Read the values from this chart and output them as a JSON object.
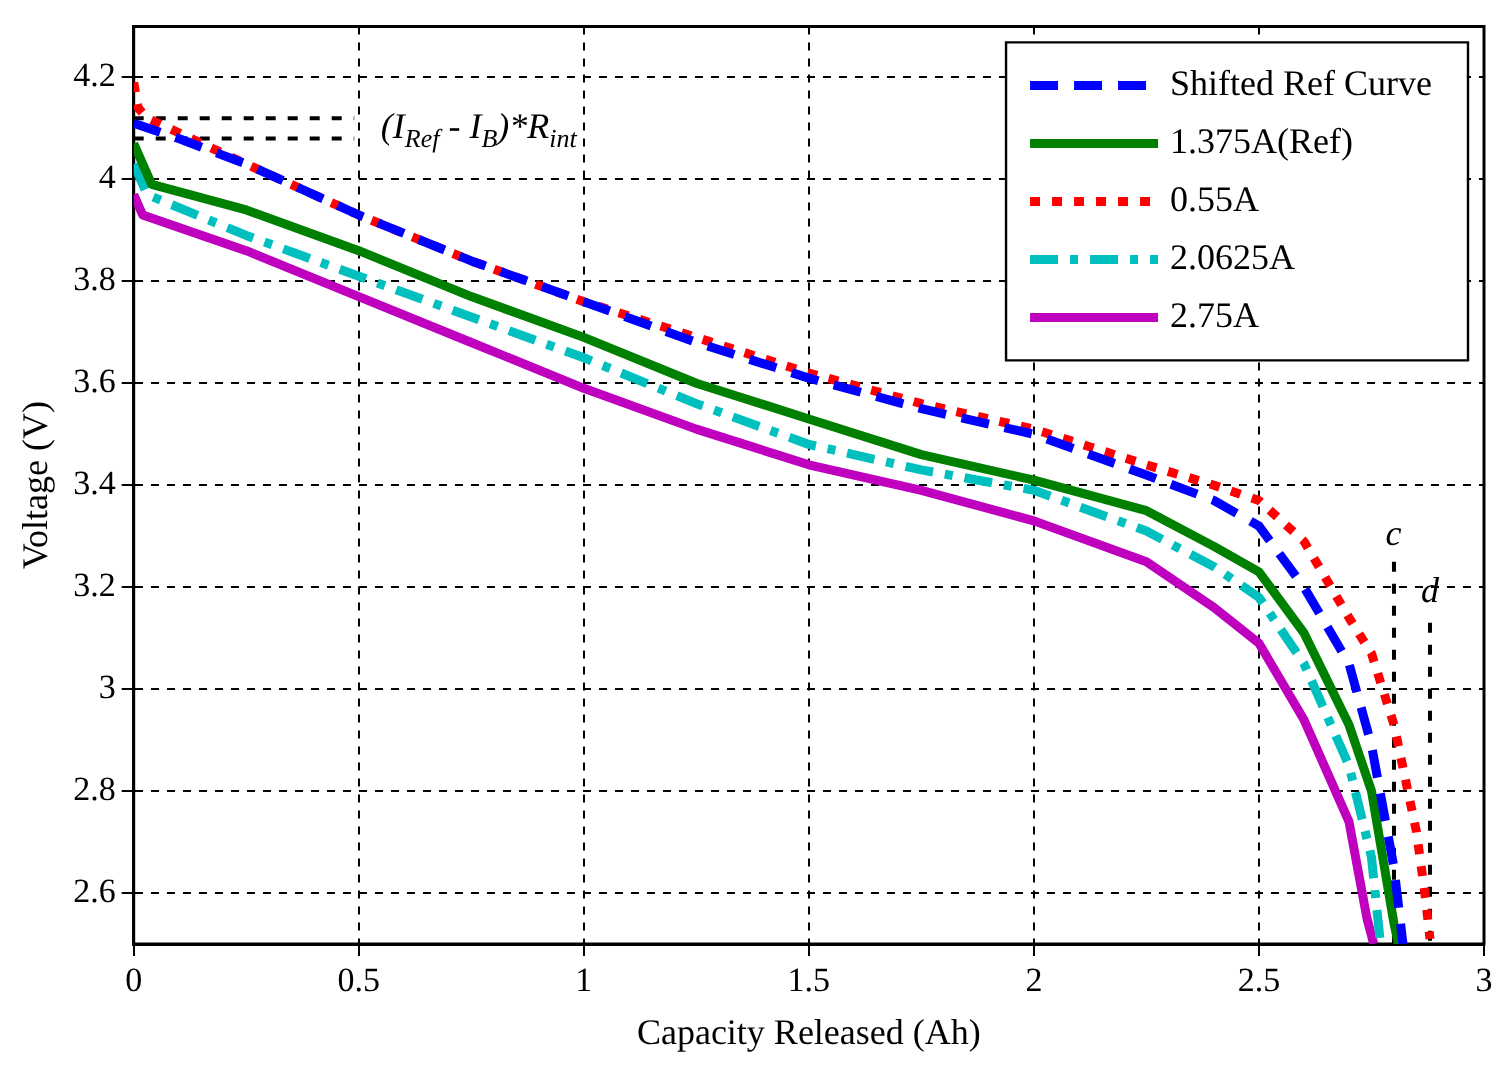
{
  "chart_data": {
    "type": "line",
    "xlabel": "Capacity Released (Ah)",
    "ylabel": "Voltage (V)",
    "xlim": [
      0,
      3
    ],
    "xticks": [
      0,
      0.5,
      1,
      1.5,
      2,
      2.5,
      3
    ],
    "ylim": [
      2.5,
      4.3
    ],
    "yticks": [
      2.6,
      2.8,
      3,
      3.2,
      3.4,
      3.6,
      3.8,
      4,
      4.2
    ],
    "grid": true,
    "legend": "top right",
    "series": [
      {
        "name": "Shifted Ref Curve",
        "color": "#0000ff",
        "line_style": "dashed",
        "x": [
          0,
          0.1,
          0.25,
          0.5,
          0.75,
          1,
          1.25,
          1.5,
          1.75,
          2,
          2.25,
          2.4,
          2.5,
          2.6,
          2.7,
          2.75,
          2.8,
          2.82
        ],
        "values": [
          4.11,
          4.08,
          4.03,
          3.93,
          3.84,
          3.76,
          3.68,
          3.61,
          3.55,
          3.5,
          3.42,
          3.37,
          3.32,
          3.2,
          3.05,
          2.89,
          2.65,
          2.5
        ]
      },
      {
        "name": "1.375A(Ref)",
        "color": "#008000",
        "line_style": "solid",
        "x": [
          0,
          0.04,
          0.25,
          0.5,
          0.75,
          1,
          1.25,
          1.5,
          1.75,
          2,
          2.25,
          2.4,
          2.5,
          2.6,
          2.7,
          2.75,
          2.8,
          2.81
        ],
        "values": [
          4.07,
          3.99,
          3.94,
          3.86,
          3.77,
          3.69,
          3.6,
          3.53,
          3.46,
          3.41,
          3.35,
          3.28,
          3.23,
          3.11,
          2.93,
          2.8,
          2.54,
          2.5
        ]
      },
      {
        "name": "0.55A",
        "color": "#ff0000",
        "line_style": "dotted",
        "x": [
          0,
          0.01,
          0.03,
          0.25,
          0.5,
          0.75,
          1,
          1.25,
          1.5,
          1.75,
          2,
          2.25,
          2.4,
          2.5,
          2.6,
          2.7,
          2.75,
          2.8,
          2.85,
          2.87,
          2.88
        ],
        "values": [
          4.19,
          4.14,
          4.12,
          4.03,
          3.93,
          3.84,
          3.76,
          3.69,
          3.62,
          3.56,
          3.51,
          3.44,
          3.4,
          3.37,
          3.29,
          3.14,
          3.07,
          2.93,
          2.72,
          2.59,
          2.51
        ]
      },
      {
        "name": "2.0625A",
        "color": "#00bfbf",
        "line_style": "dashdot",
        "x": [
          0,
          0.03,
          0.25,
          0.5,
          0.75,
          1,
          1.25,
          1.5,
          1.75,
          2,
          2.25,
          2.4,
          2.5,
          2.6,
          2.7,
          2.75,
          2.77
        ],
        "values": [
          4.03,
          3.97,
          3.89,
          3.81,
          3.73,
          3.65,
          3.56,
          3.48,
          3.43,
          3.39,
          3.31,
          3.24,
          3.18,
          3.05,
          2.85,
          2.67,
          2.5
        ]
      },
      {
        "name": "2.75A",
        "color": "#bf00bf",
        "line_style": "solid",
        "x": [
          0,
          0.02,
          0.25,
          0.5,
          0.75,
          1,
          1.25,
          1.5,
          1.75,
          2,
          2.25,
          2.4,
          2.5,
          2.6,
          2.7,
          2.74,
          2.755
        ],
        "values": [
          3.97,
          3.93,
          3.86,
          3.77,
          3.68,
          3.59,
          3.51,
          3.44,
          3.39,
          3.33,
          3.25,
          3.16,
          3.09,
          2.94,
          2.74,
          2.55,
          2.5
        ]
      },
      {
        "color": "#000000",
        "line_style": "dotted",
        "x": [
          0,
          0.49
        ],
        "values": [
          4.12,
          4.12
        ]
      },
      {
        "color": "#000000",
        "line_style": "dotted",
        "x": [
          0,
          0.49
        ],
        "values": [
          4.08,
          4.08
        ]
      },
      {
        "color": "#000000",
        "line_style": "dotted",
        "x": [
          2.8,
          2.8
        ],
        "values": [
          3.25,
          2.5
        ]
      },
      {
        "color": "#000000",
        "line_style": "dotted",
        "x": [
          2.88,
          2.88
        ],
        "values": [
          3.13,
          2.5
        ]
      }
    ],
    "annotations": [
      "(I$_{Ref}$ - I$_{B}$)*R$_{int}$",
      "c",
      "d"
    ]
  }
}
